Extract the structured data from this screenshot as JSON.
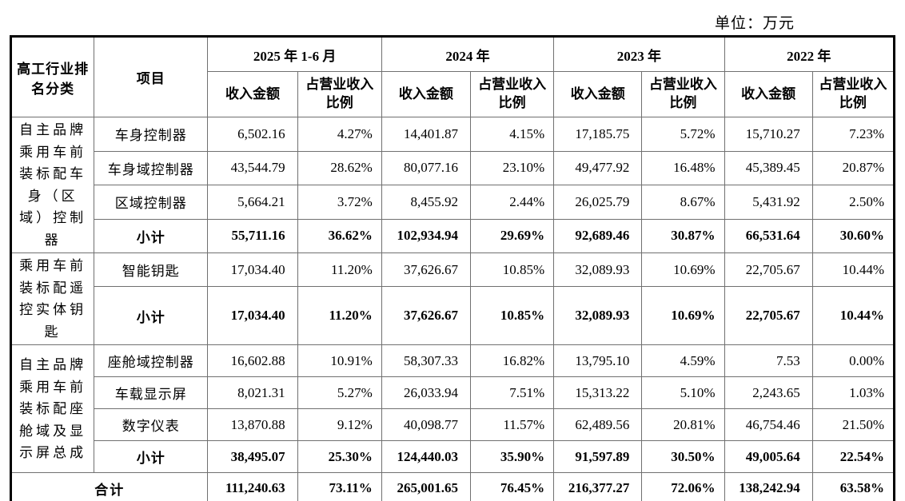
{
  "unit_label": "单位：万元",
  "highlight_color": "#f15d5d",
  "table": {
    "corner_header": "高工行业排名分类",
    "item_header": "项目",
    "year_headers": [
      "2025 年 1-6 月",
      "2024 年",
      "2023 年",
      "2022 年"
    ],
    "sub_headers": {
      "revenue": "收入金额",
      "ratio": "占营业收入比例"
    },
    "groups": [
      {
        "category": "自主品牌乘用车前装标配车身（区域）控制器",
        "rows": [
          {
            "item": "车身控制器",
            "bold": false,
            "values": [
              "6,502.16",
              "4.27%",
              "14,401.87",
              "4.15%",
              "17,185.75",
              "5.72%",
              "15,710.27",
              "7.23%"
            ]
          },
          {
            "item": "车身域控制器",
            "bold": false,
            "values": [
              "43,544.79",
              "28.62%",
              "80,077.16",
              "23.10%",
              "49,477.92",
              "16.48%",
              "45,389.45",
              "20.87%"
            ]
          },
          {
            "item": "区域控制器",
            "bold": false,
            "values": [
              "5,664.21",
              "3.72%",
              "8,455.92",
              "2.44%",
              "26,025.79",
              "8.67%",
              "5,431.92",
              "2.50%"
            ]
          },
          {
            "item": "小计",
            "bold": true,
            "values": [
              "55,711.16",
              "36.62%",
              "102,934.94",
              "29.69%",
              "92,689.46",
              "30.87%",
              "66,531.64",
              "30.60%"
            ]
          }
        ]
      },
      {
        "category": "乘用车前装标配遥控实体钥匙",
        "rows": [
          {
            "item": "智能钥匙",
            "bold": false,
            "values": [
              "17,034.40",
              "11.20%",
              "37,626.67",
              "10.85%",
              "32,089.93",
              "10.69%",
              "22,705.67",
              "10.44%"
            ]
          },
          {
            "item": "小计",
            "bold": true,
            "tall": true,
            "values": [
              "17,034.40",
              "11.20%",
              "37,626.67",
              "10.85%",
              "32,089.93",
              "10.69%",
              "22,705.67",
              "10.44%"
            ]
          }
        ]
      },
      {
        "category": "自主品牌乘用车前装标配座舱域及显示屏总成",
        "rows": [
          {
            "item": "座舱域控制器",
            "bold": false,
            "values": [
              "16,602.88",
              "10.91%",
              "58,307.33",
              "16.82%",
              "13,795.10",
              "4.59%",
              "7.53",
              "0.00%"
            ]
          },
          {
            "item": "车载显示屏",
            "bold": false,
            "values": [
              "8,021.31",
              "5.27%",
              "26,033.94",
              "7.51%",
              "15,313.22",
              "5.10%",
              "2,243.65",
              "1.03%"
            ]
          },
          {
            "item": "数字仪表",
            "bold": false,
            "values": [
              "13,870.88",
              "9.12%",
              "40,098.77",
              "11.57%",
              "62,489.56",
              "20.81%",
              "46,754.46",
              "21.50%"
            ]
          },
          {
            "item": "小计",
            "bold": true,
            "highlight": [
              2,
              3
            ],
            "values": [
              "38,495.07",
              "25.30%",
              "124,440.03",
              "35.90%",
              "91,597.89",
              "30.50%",
              "49,005.64",
              "22.54%"
            ]
          }
        ]
      }
    ],
    "total": {
      "label": "合计",
      "values": [
        "111,240.63",
        "73.11%",
        "265,001.65",
        "76.45%",
        "216,377.27",
        "72.06%",
        "138,242.94",
        "63.58%"
      ]
    }
  }
}
